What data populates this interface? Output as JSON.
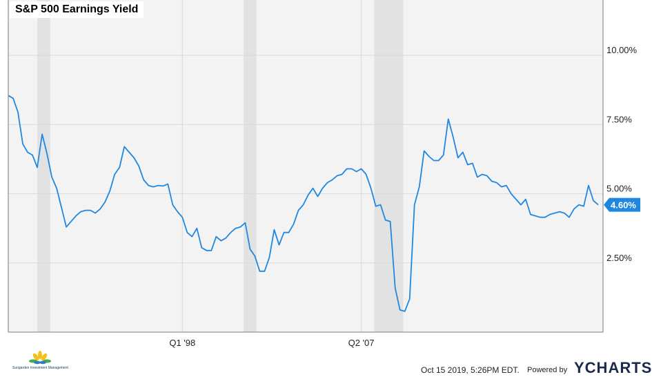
{
  "title": "S&P 500 Earnings Yield",
  "footer": {
    "date": "Oct 15 2019, 5:26PM EDT.",
    "powered_by": "Powered by",
    "brand": "YCHARTS",
    "logo_text": "Sungarden Investment Management"
  },
  "colors": {
    "line": "#1f87e0",
    "plot_bg": "#f3f3f3",
    "recession": "#e2e2e2",
    "grid": "#d9d9d9",
    "label_bg": "#1f87e0"
  },
  "chart_data": {
    "type": "line",
    "title": "S&P 500 Earnings Yield",
    "xlabel": "",
    "ylabel": "",
    "xlim": [
      1989.0,
      2019.75
    ],
    "ylim": [
      0.0,
      12.0
    ],
    "grid": true,
    "y_ticks": [
      {
        "value": 10.0,
        "label": "10.00%"
      },
      {
        "value": 7.5,
        "label": "7.50%"
      },
      {
        "value": 5.0,
        "label": "5.00%"
      },
      {
        "value": 2.5,
        "label": "2.50%"
      }
    ],
    "x_ticks": [
      {
        "value": 1998.0,
        "label": "Q1 '98"
      },
      {
        "value": 2007.25,
        "label": "Q2 '07"
      }
    ],
    "recessions": [
      {
        "start": 1990.5,
        "end": 1991.17
      },
      {
        "start": 2001.17,
        "end": 2001.83
      },
      {
        "start": 2007.92,
        "end": 2009.42
      }
    ],
    "last_value": {
      "value": 4.6,
      "label": "4.60%"
    },
    "series": [
      {
        "x": [
          1989.0,
          1989.25,
          1989.5,
          1989.75,
          1990.0,
          1990.25,
          1990.5,
          1990.75,
          1991.0,
          1991.25,
          1991.5,
          1991.75,
          1992.0,
          1992.25,
          1992.5,
          1992.75,
          1993.0,
          1993.25,
          1993.5,
          1993.75,
          1994.0,
          1994.25,
          1994.5,
          1994.75,
          1995.0,
          1995.25,
          1995.5,
          1995.75,
          1996.0,
          1996.25,
          1996.5,
          1996.75,
          1997.0,
          1997.25,
          1997.5,
          1997.75,
          1998.0,
          1998.25,
          1998.5,
          1998.75,
          1999.0,
          1999.25,
          1999.5,
          1999.75,
          2000.0,
          2000.25,
          2000.5,
          2000.75,
          2001.0,
          2001.25,
          2001.5,
          2001.75,
          2002.0,
          2002.25,
          2002.5,
          2002.75,
          2003.0,
          2003.25,
          2003.5,
          2003.75,
          2004.0,
          2004.25,
          2004.5,
          2004.75,
          2005.0,
          2005.25,
          2005.5,
          2005.75,
          2006.0,
          2006.25,
          2006.5,
          2006.75,
          2007.0,
          2007.25,
          2007.5,
          2007.75,
          2008.0,
          2008.25,
          2008.5,
          2008.75,
          2009.0,
          2009.25,
          2009.5,
          2009.75,
          2010.0,
          2010.25,
          2010.5,
          2010.75,
          2011.0,
          2011.25,
          2011.5,
          2011.75,
          2012.0,
          2012.25,
          2012.5,
          2012.75,
          2013.0,
          2013.25,
          2013.5,
          2013.75,
          2014.0,
          2014.25,
          2014.5,
          2014.75,
          2015.0,
          2015.25,
          2015.5,
          2015.75,
          2016.0,
          2016.25,
          2016.5,
          2016.75,
          2017.0,
          2017.25,
          2017.5,
          2017.75,
          2018.0,
          2018.25,
          2018.5,
          2018.75,
          2019.0,
          2019.25,
          2019.5
        ],
        "values": [
          8.55,
          8.45,
          7.95,
          6.8,
          6.5,
          6.4,
          5.95,
          7.15,
          6.45,
          5.6,
          5.2,
          4.5,
          3.8,
          4.0,
          4.2,
          4.35,
          4.4,
          4.4,
          4.3,
          4.45,
          4.7,
          5.1,
          5.7,
          5.95,
          6.7,
          6.5,
          6.3,
          6.0,
          5.5,
          5.3,
          5.25,
          5.3,
          5.28,
          5.35,
          4.6,
          4.35,
          4.15,
          3.6,
          3.45,
          3.75,
          3.05,
          2.95,
          2.95,
          3.45,
          3.3,
          3.4,
          3.6,
          3.75,
          3.8,
          3.95,
          3.0,
          2.75,
          2.2,
          2.2,
          2.7,
          3.7,
          3.15,
          3.6,
          3.6,
          3.9,
          4.4,
          4.6,
          4.95,
          5.2,
          4.9,
          5.2,
          5.4,
          5.5,
          5.65,
          5.7,
          5.9,
          5.9,
          5.8,
          5.9,
          5.7,
          5.2,
          4.55,
          4.6,
          4.05,
          4.0,
          1.6,
          0.8,
          0.75,
          1.2,
          4.6,
          5.25,
          6.55,
          6.35,
          6.2,
          6.2,
          6.4,
          7.7,
          7.05,
          6.3,
          6.5,
          6.05,
          6.1,
          5.6,
          5.7,
          5.65,
          5.45,
          5.4,
          5.25,
          5.3,
          5.0,
          4.8,
          4.6,
          4.8,
          4.25,
          4.2,
          4.15,
          4.15,
          4.25,
          4.3,
          4.35,
          4.3,
          4.15,
          4.45,
          4.6,
          4.55,
          5.3,
          4.75,
          4.6
        ]
      }
    ]
  }
}
